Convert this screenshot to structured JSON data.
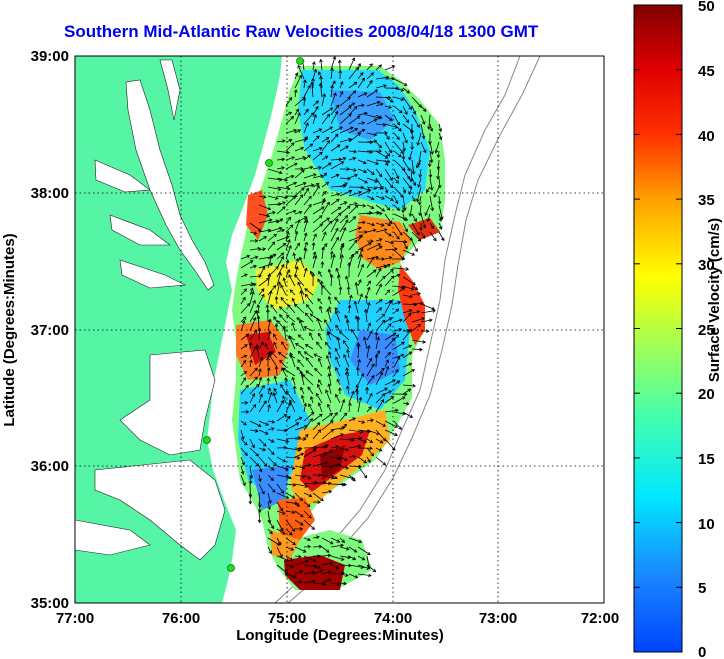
{
  "title": "Southern Mid-Atlantic Raw Velocities 2008/04/18 1300 GMT",
  "xlabel": "Longitude (Degrees:Minutes)",
  "ylabel": "Latitude (Degrees:Minutes)",
  "colorbar_label": "Surface Velocity (cm/s)",
  "x_ticks": [
    "77:00",
    "76:00",
    "75:00",
    "74:00",
    "73:00",
    "72:00"
  ],
  "y_ticks": [
    "35:00",
    "36:00",
    "37:00",
    "38:00",
    "39:00"
  ],
  "colorbar_ticks": [
    "0",
    "5",
    "10",
    "15",
    "20",
    "25",
    "30",
    "35",
    "40",
    "45",
    "50"
  ],
  "lon_range": [
    -77,
    -72
  ],
  "lat_range": [
    35,
    39
  ],
  "velocity_range": [
    0,
    50
  ],
  "colors": {
    "land": "#55f5a5",
    "title": "#0000ee",
    "station": "#22dd22"
  }
}
